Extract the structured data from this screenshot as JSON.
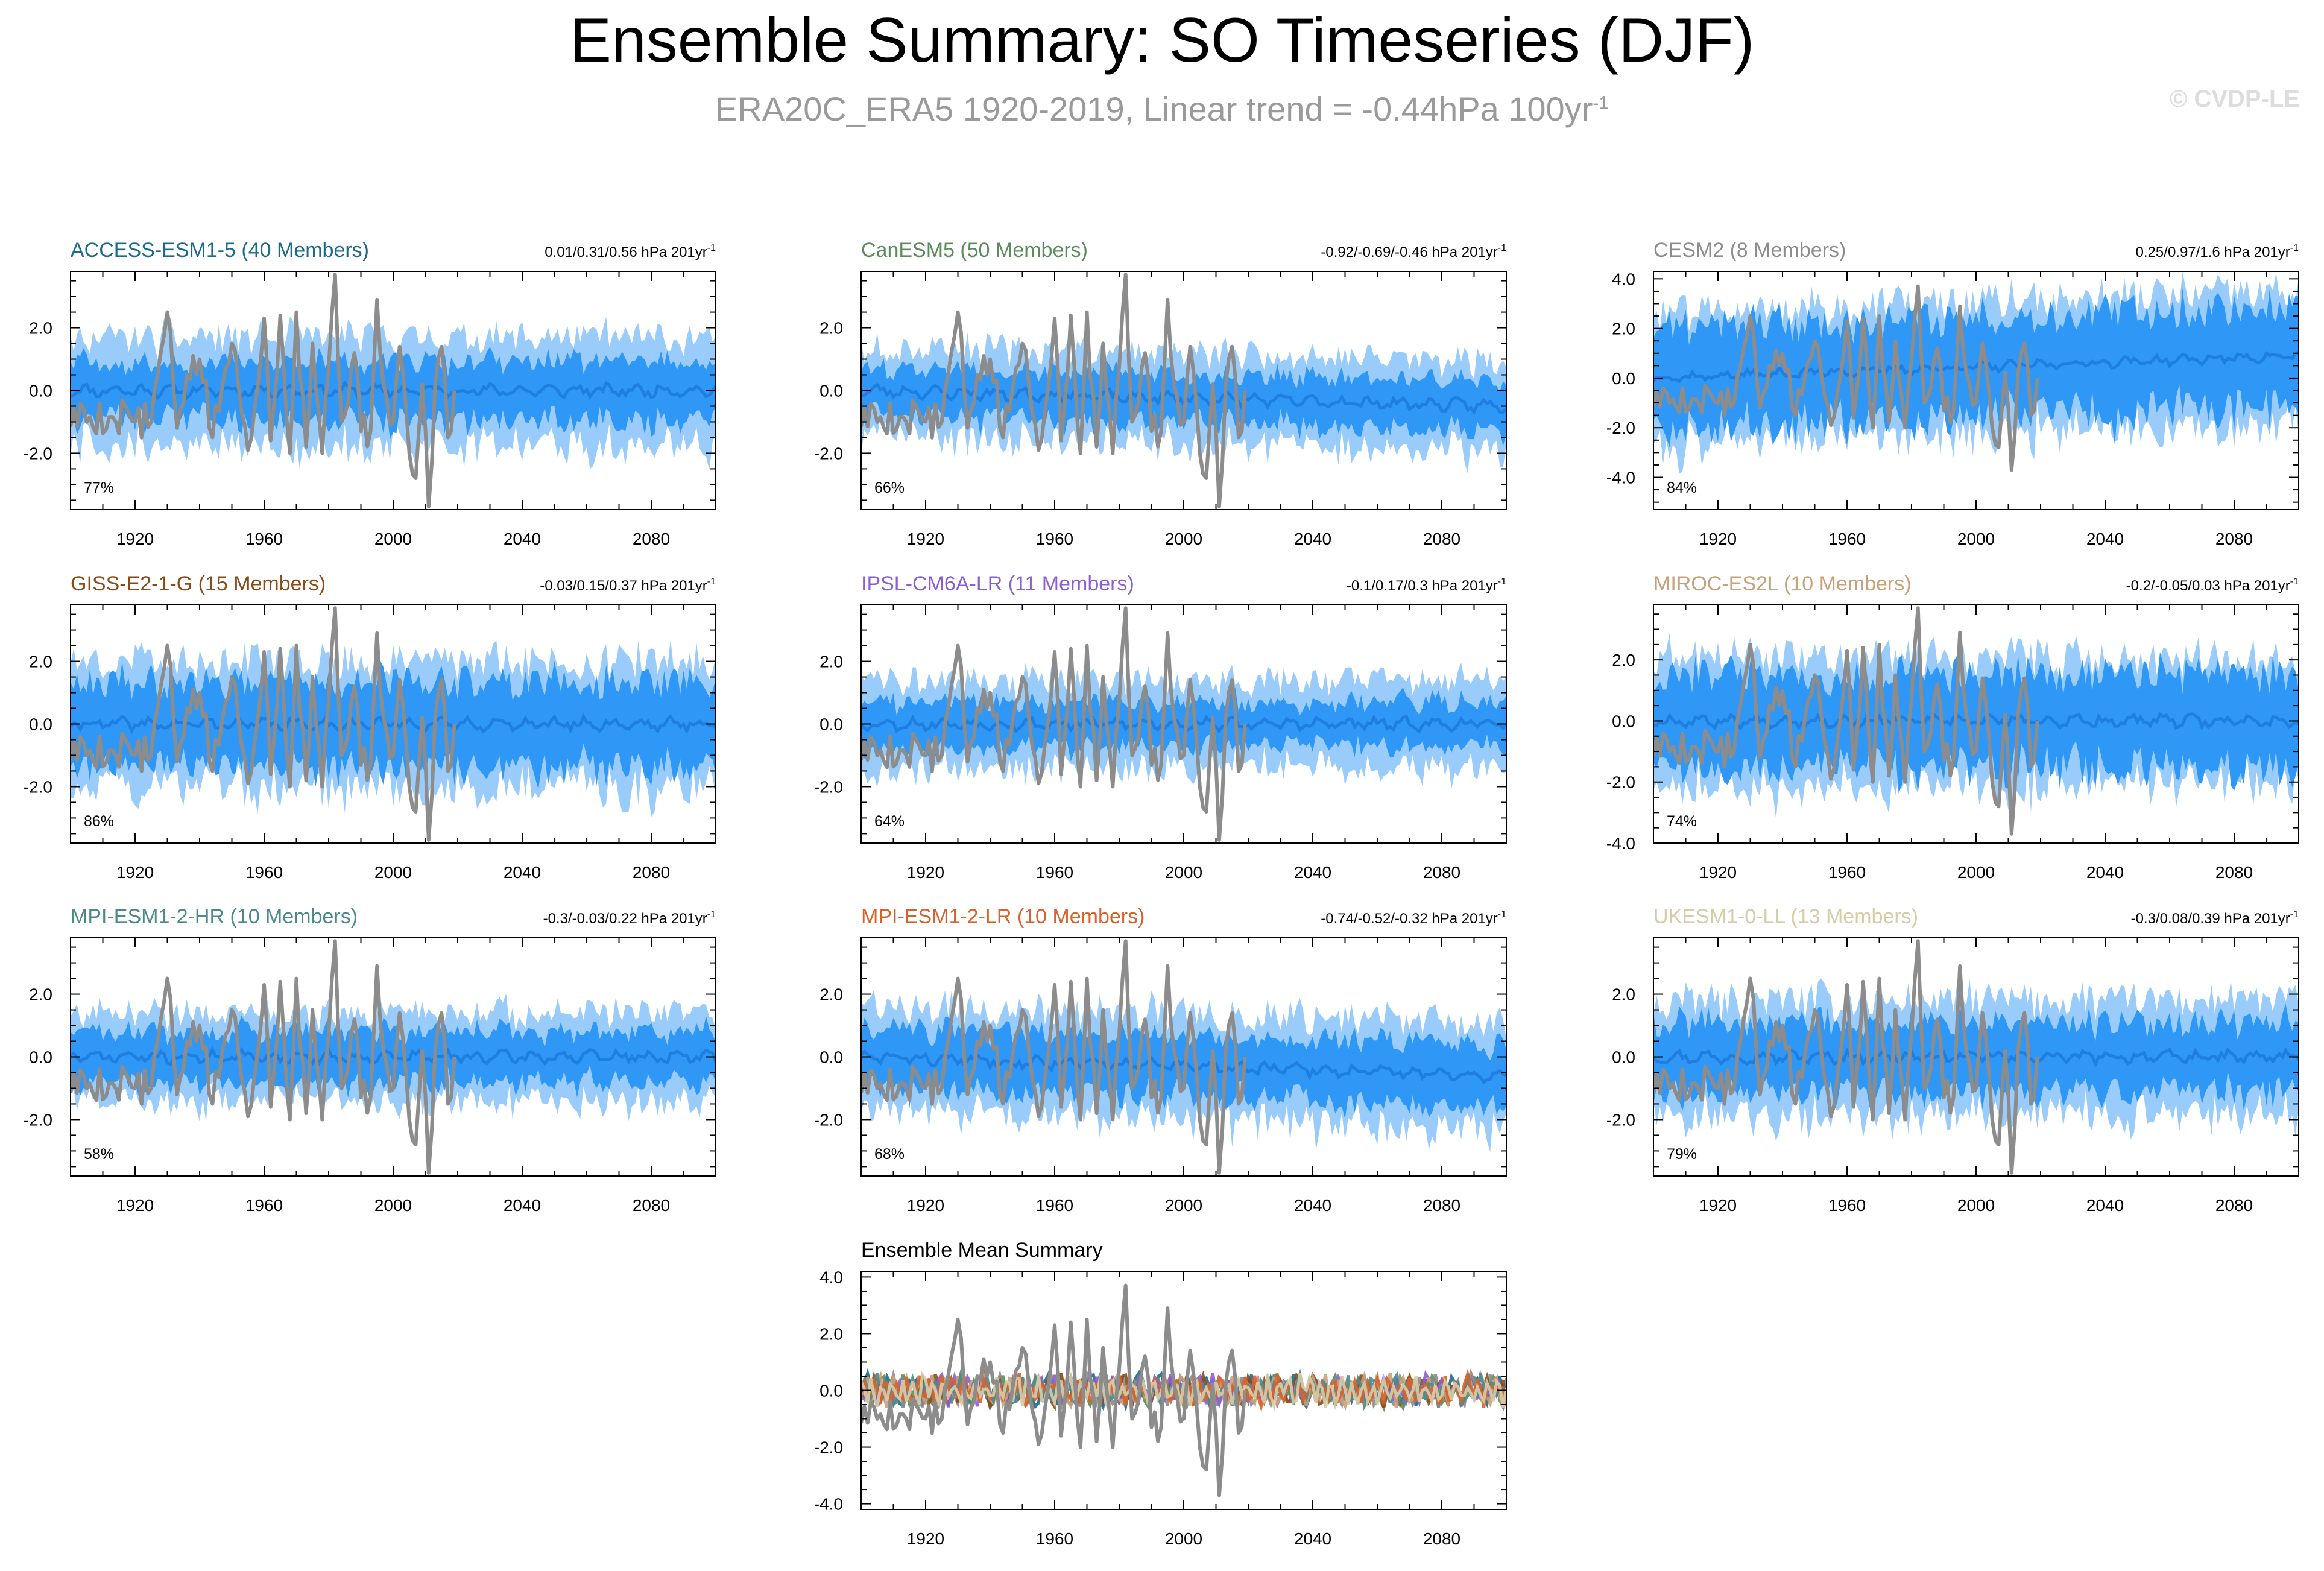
{
  "header": {
    "title": "Ensemble Summary: SO Timeseries (DJF)",
    "subtitle": "ERA20C_ERA5 1920-2019, Linear trend = -0.44hPa 100yr",
    "subtitle_sup": "-1",
    "copyright": "© CVDP-LE"
  },
  "colors": {
    "obs": "#8c8c8c",
    "spread_outer": "#99ccfa",
    "spread_inner": "#2f97f5",
    "ensemble_mean": "#1f7fe0"
  },
  "chart_data": [
    {
      "type": "area",
      "title": "ACCESS-ESM1-5 (40 Members)",
      "title_color": "#1b6a8a",
      "stats": "0.01/0.31/0.56 hPa 201yr",
      "stats_sup": "-1",
      "percent": "77%",
      "xlim": [
        1900,
        2100
      ],
      "xticks": [
        1920,
        1960,
        2000,
        2040,
        2080
      ],
      "ylim": [
        -3.8,
        3.8
      ],
      "yticks": [
        -2.0,
        0.0,
        2.0
      ],
      "ytick_labels": [
        "-2.0",
        "0.0",
        "2.0"
      ],
      "outer_amp": 1.7,
      "inner_amp": 0.95,
      "mean_end": 0.0,
      "seed": 11
    },
    {
      "type": "area",
      "title": "CanESM5 (50 Members)",
      "title_color": "#5b8a5b",
      "stats": "-0.92/-0.69/-0.46 hPa 201yr",
      "stats_sup": "-1",
      "percent": "66%",
      "xlim": [
        1900,
        2100
      ],
      "xticks": [
        1920,
        1960,
        2000,
        2040,
        2080
      ],
      "ylim": [
        -3.8,
        3.8
      ],
      "yticks": [
        -2.0,
        0.0,
        2.0
      ],
      "ytick_labels": [
        "-2.0",
        "0.0",
        "2.0"
      ],
      "outer_amp": 1.45,
      "inner_amp": 0.8,
      "mean_end": -0.5,
      "seed": 23
    },
    {
      "type": "area",
      "title": "CESM2 (8 Members)",
      "title_color": "#8c8c8c",
      "stats": "0.25/0.97/1.6 hPa 201yr",
      "stats_sup": "-1",
      "percent": "84%",
      "xlim": [
        1900,
        2100
      ],
      "xticks": [
        1920,
        1960,
        2000,
        2040,
        2080
      ],
      "ylim": [
        -5.3,
        4.3
      ],
      "yticks": [
        -4.0,
        -2.0,
        0.0,
        2.0,
        4.0
      ],
      "ytick_labels": [
        "-4.0",
        "-2.0",
        "0.0",
        "2.0",
        "4.0"
      ],
      "outer_amp": 2.6,
      "inner_amp": 2.1,
      "mean_end": 0.9,
      "seed": 37
    },
    {
      "type": "area",
      "title": "GISS-E2-1-G (15 Members)",
      "title_color": "#8a4b1a",
      "stats": "-0.03/0.15/0.37 hPa 201yr",
      "stats_sup": "-1",
      "percent": "86%",
      "xlim": [
        1900,
        2100
      ],
      "xticks": [
        1920,
        1960,
        2000,
        2040,
        2080
      ],
      "ylim": [
        -3.8,
        3.8
      ],
      "yticks": [
        -2.0,
        0.0,
        2.0
      ],
      "ytick_labels": [
        "-2.0",
        "0.0",
        "2.0"
      ],
      "outer_amp": 2.0,
      "inner_amp": 1.4,
      "mean_end": 0.0,
      "seed": 41
    },
    {
      "type": "area",
      "title": "IPSL-CM6A-LR (11 Members)",
      "title_color": "#8a5fd1",
      "stats": "-0.1/0.17/0.3 hPa 201yr",
      "stats_sup": "-1",
      "percent": "64%",
      "xlim": [
        1900,
        2100
      ],
      "xticks": [
        1920,
        1960,
        2000,
        2040,
        2080
      ],
      "ylim": [
        -3.8,
        3.8
      ],
      "yticks": [
        -2.0,
        0.0,
        2.0
      ],
      "ytick_labels": [
        "-2.0",
        "0.0",
        "2.0"
      ],
      "outer_amp": 1.4,
      "inner_amp": 0.75,
      "mean_end": 0.0,
      "seed": 53
    },
    {
      "type": "area",
      "title": "MIROC-ES2L (10 Members)",
      "title_color": "#c8a07a",
      "stats": "-0.2/-0.05/0.03 hPa 201yr",
      "stats_sup": "-1",
      "percent": "74%",
      "xlim": [
        1900,
        2100
      ],
      "xticks": [
        1920,
        1960,
        2000,
        2040,
        2080
      ],
      "ylim": [
        -4.0,
        3.8
      ],
      "yticks": [
        -4.0,
        -2.0,
        0.0,
        2.0
      ],
      "ytick_labels": [
        "-4.0",
        "-2.0",
        "0.0",
        "2.0"
      ],
      "outer_amp": 2.1,
      "inner_amp": 1.6,
      "mean_end": 0.0,
      "seed": 67
    },
    {
      "type": "area",
      "title": "MPI-ESM1-2-HR (10 Members)",
      "title_color": "#4a8a8a",
      "stats": "-0.3/-0.03/0.22 hPa 201yr",
      "stats_sup": "-1",
      "percent": "58%",
      "xlim": [
        1900,
        2100
      ],
      "xticks": [
        1920,
        1960,
        2000,
        2040,
        2080
      ],
      "ylim": [
        -3.8,
        3.8
      ],
      "yticks": [
        -2.0,
        0.0,
        2.0
      ],
      "ytick_labels": [
        "-2.0",
        "0.0",
        "2.0"
      ],
      "outer_amp": 1.4,
      "inner_amp": 0.85,
      "mean_end": 0.0,
      "seed": 71
    },
    {
      "type": "area",
      "title": "MPI-ESM1-2-LR (10 Members)",
      "title_color": "#d9622b",
      "stats": "-0.74/-0.52/-0.32 hPa 201yr",
      "stats_sup": "-1",
      "percent": "68%",
      "xlim": [
        1900,
        2100
      ],
      "xticks": [
        1920,
        1960,
        2000,
        2040,
        2080
      ],
      "ylim": [
        -3.8,
        3.8
      ],
      "yticks": [
        -2.0,
        0.0,
        2.0
      ],
      "ytick_labels": [
        "-2.0",
        "0.0",
        "2.0"
      ],
      "outer_amp": 1.7,
      "inner_amp": 1.0,
      "mean_end": -0.6,
      "seed": 83
    },
    {
      "type": "area",
      "title": "UKESM1-0-LL (13 Members)",
      "title_color": "#d6cca8",
      "stats": "-0.3/0.08/0.39 hPa 201yr",
      "stats_sup": "-1",
      "percent": "79%",
      "xlim": [
        1900,
        2100
      ],
      "xticks": [
        1920,
        1960,
        2000,
        2040,
        2080
      ],
      "ylim": [
        -3.8,
        3.8
      ],
      "yticks": [
        -2.0,
        0.0,
        2.0
      ],
      "ytick_labels": [
        "-2.0",
        "0.0",
        "2.0"
      ],
      "outer_amp": 1.8,
      "inner_amp": 1.15,
      "mean_end": 0.0,
      "seed": 97
    },
    {
      "type": "line",
      "title": "Ensemble Mean Summary",
      "title_color": "#000000",
      "xlim": [
        1900,
        2100
      ],
      "xticks": [
        1920,
        1960,
        2000,
        2040,
        2080
      ],
      "ylim": [
        -4.2,
        4.2
      ],
      "yticks": [
        -4.0,
        -2.0,
        0.0,
        2.0,
        4.0
      ],
      "ytick_labels": [
        "-4.0",
        "-2.0",
        "0.0",
        "2.0",
        "4.0"
      ],
      "series_colors": [
        "#1b6a8a",
        "#5b8a5b",
        "#8c8c8c",
        "#8a4b1a",
        "#8a5fd1",
        "#c8a07a",
        "#4a8a8a",
        "#d9622b",
        "#d6cca8"
      ],
      "seed": 101
    }
  ],
  "observations": {
    "name": "ERA20C_ERA5",
    "years": [
      1900,
      2019
    ],
    "key_points": [
      [
        1913,
        -1.4
      ],
      [
        1917,
        -0.5
      ],
      [
        1920,
        -1.0
      ],
      [
        1925,
        -1.0
      ],
      [
        1930,
        2.5
      ],
      [
        1933,
        -1.2
      ],
      [
        1936,
        0.5
      ],
      [
        1940,
        1.0
      ],
      [
        1944,
        -1.5
      ],
      [
        1948,
        0.7
      ],
      [
        1950,
        1.5
      ],
      [
        1955,
        -1.9
      ],
      [
        1960,
        2.3
      ],
      [
        1962,
        -1.6
      ],
      [
        1965,
        2.4
      ],
      [
        1968,
        -2.0
      ],
      [
        1970,
        2.5
      ],
      [
        1973,
        -1.8
      ],
      [
        1975,
        1.5
      ],
      [
        1978,
        -2.0
      ],
      [
        1982,
        3.7
      ],
      [
        1984,
        -1.0
      ],
      [
        1988,
        1.2
      ],
      [
        1990,
        -1.3
      ],
      [
        1993,
        -1.3
      ],
      [
        1995,
        2.9
      ],
      [
        1997,
        0.2
      ],
      [
        2000,
        -1.0
      ],
      [
        2002,
        1.4
      ],
      [
        2005,
        -2.0
      ],
      [
        2007,
        -2.8
      ],
      [
        2009,
        0.2
      ],
      [
        2011,
        -3.7
      ],
      [
        2013,
        0.2
      ],
      [
        2015,
        1.4
      ],
      [
        2017,
        -1.5
      ],
      [
        2019,
        0.0
      ]
    ],
    "seed": 5
  }
}
